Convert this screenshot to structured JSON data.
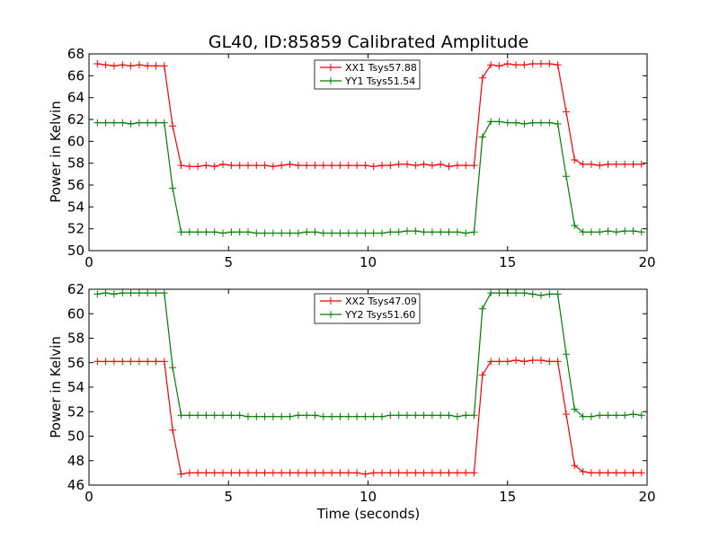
{
  "chart_data": {
    "title": "GL40, ID:85859 Calibrated Amplitude",
    "xlabel": "Time (seconds)",
    "ylabel": "Power in Kelvin",
    "charts": [
      {
        "type": "line",
        "xlim": [
          0,
          20
        ],
        "ylim": [
          50,
          68
        ],
        "xticks": [
          "0",
          "5",
          "10",
          "15",
          "20"
        ],
        "yticks": [
          "50",
          "52",
          "54",
          "56",
          "58",
          "60",
          "62",
          "64",
          "66",
          "68"
        ],
        "legend_position": "top-center",
        "series": [
          {
            "name": "XX1 Tsys57.88",
            "color": "#ff0000",
            "x": [
              0.3,
              0.6,
              0.9,
              1.2,
              1.5,
              1.8,
              2.1,
              2.4,
              2.7,
              3.0,
              3.3,
              3.6,
              3.9,
              4.2,
              4.5,
              4.8,
              5.1,
              5.4,
              5.7,
              6.0,
              6.3,
              6.6,
              6.9,
              7.2,
              7.5,
              7.8,
              8.1,
              8.4,
              8.7,
              9.0,
              9.3,
              9.6,
              9.9,
              10.2,
              10.5,
              10.8,
              11.1,
              11.4,
              11.7,
              12.0,
              12.3,
              12.6,
              12.9,
              13.2,
              13.5,
              13.8,
              14.1,
              14.4,
              14.7,
              15.0,
              15.3,
              15.6,
              15.9,
              16.2,
              16.5,
              16.8,
              17.1,
              17.4,
              17.7,
              18.0,
              18.3,
              18.6,
              18.9,
              19.2,
              19.5,
              19.8
            ],
            "y": [
              67.1,
              67.0,
              66.9,
              67.0,
              66.9,
              67.0,
              66.9,
              66.9,
              66.9,
              61.4,
              57.8,
              57.7,
              57.7,
              57.8,
              57.7,
              57.9,
              57.8,
              57.8,
              57.8,
              57.8,
              57.8,
              57.7,
              57.8,
              57.9,
              57.8,
              57.8,
              57.8,
              57.8,
              57.8,
              57.8,
              57.8,
              57.8,
              57.8,
              57.7,
              57.8,
              57.8,
              57.9,
              57.9,
              57.8,
              57.9,
              57.8,
              57.9,
              57.7,
              57.8,
              57.8,
              57.8,
              65.8,
              67.0,
              66.9,
              67.1,
              67.0,
              67.0,
              67.1,
              67.1,
              67.1,
              67.0,
              62.7,
              58.3,
              57.9,
              57.9,
              57.8,
              57.9,
              57.9,
              57.9,
              57.9,
              57.9
            ]
          },
          {
            "name": "YY1 Tsys51.54",
            "color": "#008000",
            "x": [
              0.3,
              0.6,
              0.9,
              1.2,
              1.5,
              1.8,
              2.1,
              2.4,
              2.7,
              3.0,
              3.3,
              3.6,
              3.9,
              4.2,
              4.5,
              4.8,
              5.1,
              5.4,
              5.7,
              6.0,
              6.3,
              6.6,
              6.9,
              7.2,
              7.5,
              7.8,
              8.1,
              8.4,
              8.7,
              9.0,
              9.3,
              9.6,
              9.9,
              10.2,
              10.5,
              10.8,
              11.1,
              11.4,
              11.7,
              12.0,
              12.3,
              12.6,
              12.9,
              13.2,
              13.5,
              13.8,
              14.1,
              14.4,
              14.7,
              15.0,
              15.3,
              15.6,
              15.9,
              16.2,
              16.5,
              16.8,
              17.1,
              17.4,
              17.7,
              18.0,
              18.3,
              18.6,
              18.9,
              19.2,
              19.5,
              19.8
            ],
            "y": [
              61.7,
              61.7,
              61.7,
              61.7,
              61.6,
              61.7,
              61.7,
              61.7,
              61.7,
              55.7,
              51.7,
              51.7,
              51.7,
              51.7,
              51.7,
              51.6,
              51.7,
              51.7,
              51.7,
              51.6,
              51.6,
              51.6,
              51.6,
              51.6,
              51.6,
              51.7,
              51.7,
              51.6,
              51.6,
              51.6,
              51.6,
              51.6,
              51.6,
              51.6,
              51.6,
              51.7,
              51.7,
              51.8,
              51.8,
              51.7,
              51.7,
              51.7,
              51.7,
              51.7,
              51.6,
              51.7,
              60.4,
              61.8,
              61.8,
              61.7,
              61.7,
              61.6,
              61.7,
              61.7,
              61.7,
              61.6,
              56.8,
              52.3,
              51.7,
              51.7,
              51.7,
              51.8,
              51.7,
              51.8,
              51.8,
              51.7
            ]
          }
        ]
      },
      {
        "type": "line",
        "xlim": [
          0,
          20
        ],
        "ylim": [
          46,
          62
        ],
        "xticks": [
          "0",
          "5",
          "10",
          "15",
          "20"
        ],
        "yticks": [
          "46",
          "48",
          "50",
          "52",
          "54",
          "56",
          "58",
          "60",
          "62"
        ],
        "legend_position": "top-center",
        "series": [
          {
            "name": "XX2 Tsys47.09",
            "color": "#ff0000",
            "x": [
              0.3,
              0.6,
              0.9,
              1.2,
              1.5,
              1.8,
              2.1,
              2.4,
              2.7,
              3.0,
              3.3,
              3.6,
              3.9,
              4.2,
              4.5,
              4.8,
              5.1,
              5.4,
              5.7,
              6.0,
              6.3,
              6.6,
              6.9,
              7.2,
              7.5,
              7.8,
              8.1,
              8.4,
              8.7,
              9.0,
              9.3,
              9.6,
              9.9,
              10.2,
              10.5,
              10.8,
              11.1,
              11.4,
              11.7,
              12.0,
              12.3,
              12.6,
              12.9,
              13.2,
              13.5,
              13.8,
              14.1,
              14.4,
              14.7,
              15.0,
              15.3,
              15.6,
              15.9,
              16.2,
              16.5,
              16.8,
              17.1,
              17.4,
              17.7,
              18.0,
              18.3,
              18.6,
              18.9,
              19.2,
              19.5,
              19.8
            ],
            "y": [
              56.1,
              56.1,
              56.1,
              56.1,
              56.1,
              56.1,
              56.1,
              56.1,
              56.1,
              50.5,
              46.9,
              47.0,
              47.0,
              47.0,
              47.0,
              47.0,
              47.0,
              47.0,
              47.0,
              47.0,
              47.0,
              47.0,
              47.0,
              47.0,
              47.0,
              47.0,
              47.0,
              47.0,
              47.0,
              47.0,
              47.0,
              47.0,
              46.9,
              47.0,
              47.0,
              47.0,
              47.0,
              47.0,
              47.0,
              47.0,
              47.0,
              47.0,
              47.0,
              47.0,
              47.0,
              47.0,
              55.0,
              56.1,
              56.1,
              56.1,
              56.2,
              56.1,
              56.2,
              56.2,
              56.1,
              56.1,
              51.8,
              47.6,
              47.1,
              47.0,
              47.0,
              47.0,
              47.0,
              47.0,
              47.0,
              47.0
            ]
          },
          {
            "name": "YY2 Tsys51.60",
            "color": "#008000",
            "x": [
              0.3,
              0.6,
              0.9,
              1.2,
              1.5,
              1.8,
              2.1,
              2.4,
              2.7,
              3.0,
              3.3,
              3.6,
              3.9,
              4.2,
              4.5,
              4.8,
              5.1,
              5.4,
              5.7,
              6.0,
              6.3,
              6.6,
              6.9,
              7.2,
              7.5,
              7.8,
              8.1,
              8.4,
              8.7,
              9.0,
              9.3,
              9.6,
              9.9,
              10.2,
              10.5,
              10.8,
              11.1,
              11.4,
              11.7,
              12.0,
              12.3,
              12.6,
              12.9,
              13.2,
              13.5,
              13.8,
              14.1,
              14.4,
              14.7,
              15.0,
              15.3,
              15.6,
              15.9,
              16.2,
              16.5,
              16.8,
              17.1,
              17.4,
              17.7,
              18.0,
              18.3,
              18.6,
              18.9,
              19.2,
              19.5,
              19.8
            ],
            "y": [
              61.6,
              61.7,
              61.6,
              61.7,
              61.7,
              61.7,
              61.7,
              61.7,
              61.7,
              55.6,
              51.7,
              51.7,
              51.7,
              51.7,
              51.7,
              51.7,
              51.7,
              51.7,
              51.6,
              51.6,
              51.6,
              51.6,
              51.6,
              51.6,
              51.7,
              51.7,
              51.7,
              51.6,
              51.6,
              51.6,
              51.6,
              51.6,
              51.6,
              51.6,
              51.6,
              51.7,
              51.7,
              51.7,
              51.7,
              51.7,
              51.7,
              51.7,
              51.7,
              51.6,
              51.7,
              51.7,
              60.4,
              61.7,
              61.7,
              61.7,
              61.7,
              61.7,
              61.6,
              61.5,
              61.6,
              61.6,
              56.7,
              52.2,
              51.6,
              51.6,
              51.7,
              51.7,
              51.7,
              51.7,
              51.8,
              51.7
            ]
          }
        ]
      }
    ]
  }
}
